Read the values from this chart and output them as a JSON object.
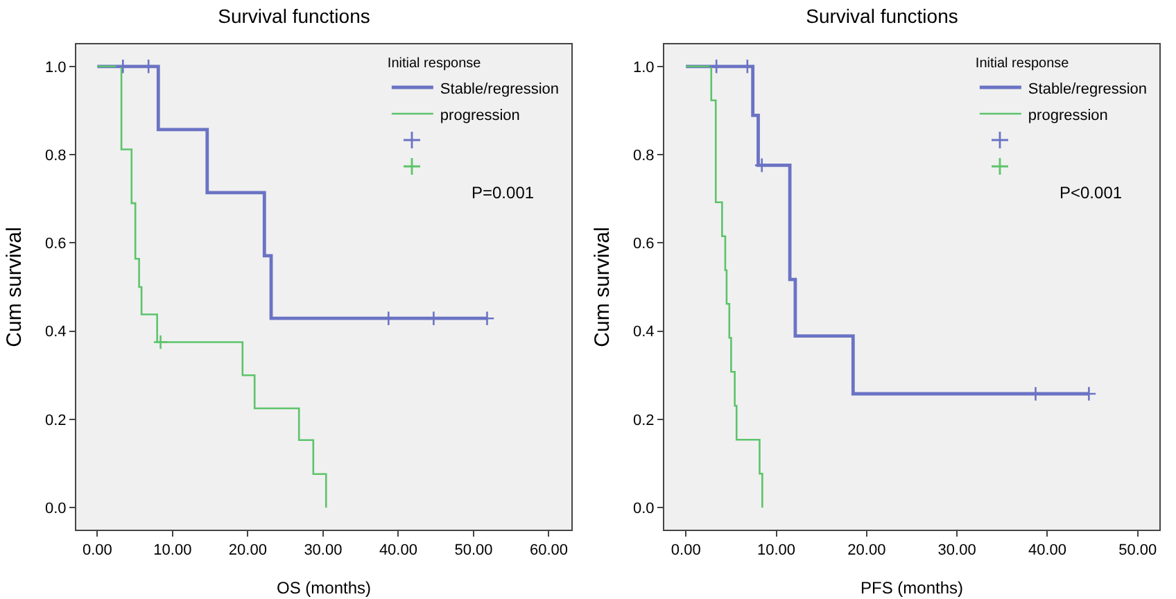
{
  "chart_data": [
    {
      "type": "step",
      "title": "Survival functions",
      "xlabel": "OS (months)",
      "ylabel": "Cum survival",
      "legend_title": "Initial response",
      "legend": "top right",
      "grid": false,
      "marker": "none",
      "xlim": [
        -2.8,
        63
      ],
      "ylim": [
        -0.05,
        1.05
      ],
      "xticks": [
        {
          "value": 0,
          "label": "0.00"
        },
        {
          "value": 10,
          "label": "10.00"
        },
        {
          "value": 20,
          "label": "20.00"
        },
        {
          "value": 30,
          "label": "30.00"
        },
        {
          "value": 40,
          "label": "40.00"
        },
        {
          "value": 50,
          "label": "50.00"
        },
        {
          "value": 60,
          "label": "60.00"
        }
      ],
      "yticks": [
        {
          "value": 0,
          "label": "0.0"
        },
        {
          "value": 0.2,
          "label": "0.2"
        },
        {
          "value": 0.4,
          "label": "0.4"
        },
        {
          "value": 0.6,
          "label": "0.6"
        },
        {
          "value": 0.8,
          "label": "0.8"
        },
        {
          "value": 1,
          "label": "1.0"
        }
      ],
      "annotations": [
        "P=0.001"
      ],
      "series": [
        {
          "name": "Stable/regression",
          "color": "#6b73c4",
          "x": [
            0,
            8.1,
            14.6,
            22.2,
            23.1,
            51.8
          ],
          "values": [
            1,
            0.857,
            0.714,
            0.571,
            0.429,
            0.429
          ]
        },
        {
          "name": "progression",
          "color": "#5cc46b",
          "x": [
            0,
            3.2,
            4.55,
            5.05,
            5.55,
            5.87,
            7.95,
            19.3,
            20.9,
            26.8,
            28.7,
            30.4
          ],
          "values": [
            1,
            0.812,
            0.69,
            0.564,
            0.5,
            0.438,
            0.375,
            0.3,
            0.225,
            0.153,
            0.076,
            0
          ]
        },
        {
          "type": "scatter",
          "marker": "cross",
          "color": "#6b73c4",
          "x": [
            3.4,
            6.8,
            38.7,
            44.7,
            51.8
          ],
          "values": [
            1,
            1,
            0.429,
            0.429,
            0.429
          ]
        },
        {
          "type": "scatter",
          "marker": "cross",
          "color": "#5cc46b",
          "x": [
            8.4
          ],
          "values": [
            0.375
          ]
        }
      ]
    },
    {
      "type": "step",
      "title": "Survival functions",
      "xlabel": "PFS (months)",
      "ylabel": "Cum survival",
      "legend_title": "Initial response",
      "legend": "top right",
      "grid": false,
      "marker": "none",
      "xlim": [
        -2.4,
        52.4
      ],
      "ylim": [
        -0.05,
        1.05
      ],
      "xticks": [
        {
          "value": 0,
          "label": "0.00"
        },
        {
          "value": 10,
          "label": "10.00"
        },
        {
          "value": 20,
          "label": "20.00"
        },
        {
          "value": 30,
          "label": "30.00"
        },
        {
          "value": 40,
          "label": "40.00"
        },
        {
          "value": 50,
          "label": "50.00"
        }
      ],
      "yticks": [
        {
          "value": 0,
          "label": "0.0"
        },
        {
          "value": 0.2,
          "label": "0.2"
        },
        {
          "value": 0.4,
          "label": "0.4"
        },
        {
          "value": 0.6,
          "label": "0.6"
        },
        {
          "value": 0.8,
          "label": "0.8"
        },
        {
          "value": 1,
          "label": "1.0"
        }
      ],
      "annotations": [
        "P<0.001"
      ],
      "series": [
        {
          "name": "Stable/regression",
          "color": "#6b73c4",
          "x": [
            0,
            7.4,
            8.0,
            11.5,
            12.1,
            18.5,
            44.6
          ],
          "values": [
            1,
            0.889,
            0.776,
            0.517,
            0.389,
            0.258,
            0.258
          ]
        },
        {
          "name": "progression",
          "color": "#5cc46b",
          "x": [
            0,
            2.8,
            3.3,
            4.0,
            4.35,
            4.5,
            4.8,
            5.0,
            5.4,
            5.6,
            8.15,
            8.45
          ],
          "values": [
            1,
            0.923,
            0.692,
            0.615,
            0.538,
            0.462,
            0.385,
            0.308,
            0.231,
            0.154,
            0.077,
            0
          ]
        },
        {
          "type": "scatter",
          "marker": "cross",
          "color": "#6b73c4",
          "x": [
            3.37,
            6.8,
            8.4,
            38.7,
            44.6
          ],
          "values": [
            1,
            1,
            0.776,
            0.258,
            0.258
          ]
        }
      ]
    }
  ]
}
